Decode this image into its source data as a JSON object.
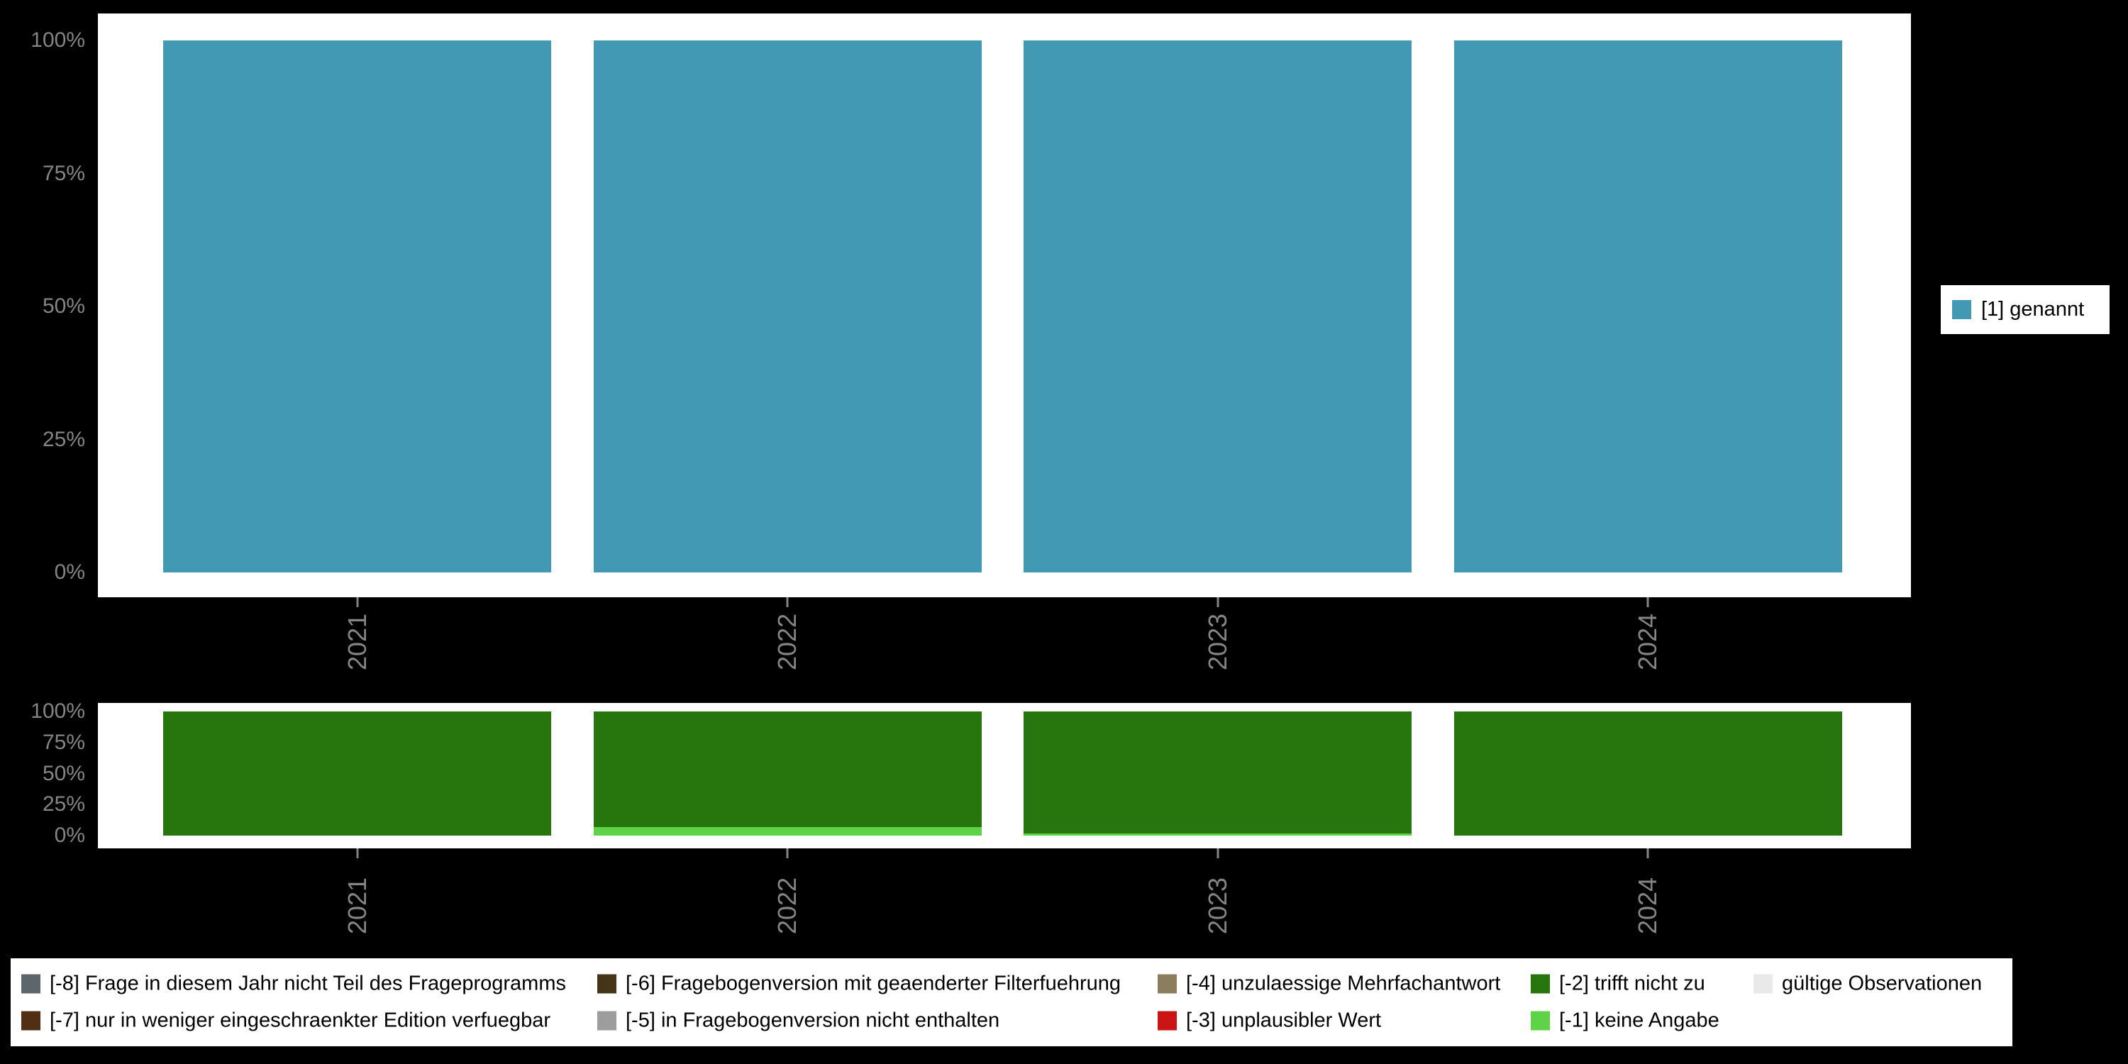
{
  "colors": {
    "background": "#000000",
    "panel": "#ffffff",
    "axis_text": "#858585",
    "genannt": "#4199b3",
    "trifft_nicht_zu": "#26760d",
    "keine_angabe": "#5fd348"
  },
  "top_chart": {
    "y_ticks": [
      "100%",
      "75%",
      "50%",
      "25%",
      "0%"
    ],
    "x_labels": [
      "2021",
      "2022",
      "2023",
      "2024"
    ],
    "legend": {
      "label": "[1] genannt",
      "color": "#4199b3"
    }
  },
  "bottom_chart": {
    "y_ticks": [
      "100%",
      "75%",
      "50%",
      "25%",
      "0%"
    ],
    "x_labels": [
      "2021",
      "2022",
      "2023",
      "2024"
    ]
  },
  "legend_bottom": {
    "rows": [
      [
        {
          "code": "-8",
          "label": "[-8] Frage in diesem Jahr nicht Teil des Frageprogramms",
          "color": "#5c666b"
        },
        {
          "code": "-6",
          "label": "[-6] Fragebogenversion mit geaenderter Filterfuehrung",
          "color": "#453418"
        },
        {
          "code": "-4",
          "label": "[-4] unzulaessige Mehrfachantwort",
          "color": "#8b7d5e"
        },
        {
          "code": "-2",
          "label": "[-2] trifft nicht zu",
          "color": "#26760d"
        },
        {
          "code": "valid",
          "label": "gültige Observationen",
          "color": "#e9e9e9"
        }
      ],
      [
        {
          "code": "-7",
          "label": "[-7] nur in weniger eingeschraenkter Edition verfuegbar",
          "color": "#502f15"
        },
        {
          "code": "-5",
          "label": "[-5] in Fragebogenversion nicht enthalten",
          "color": "#9d9d9d"
        },
        {
          "code": "-3",
          "label": "[-3] unplausibler Wert",
          "color": "#cb1414"
        },
        {
          "code": "-1",
          "label": "[-1] keine Angabe",
          "color": "#5fd348"
        }
      ]
    ]
  },
  "chart_data": [
    {
      "type": "bar",
      "title": "",
      "categories": [
        "2021",
        "2022",
        "2023",
        "2024"
      ],
      "series": [
        {
          "name": "[1] genannt",
          "color": "#4199b3",
          "values": [
            100,
            100,
            100,
            100
          ]
        }
      ],
      "xlabel": "",
      "ylabel": "",
      "ylim": [
        0,
        100
      ],
      "y_tick_labels": [
        "0%",
        "25%",
        "50%",
        "75%",
        "100%"
      ],
      "unit": "percent",
      "grid": false,
      "legend_position": "right"
    },
    {
      "type": "bar",
      "stacked": true,
      "title": "",
      "categories": [
        "2021",
        "2022",
        "2023",
        "2024"
      ],
      "series": [
        {
          "name": "[-1] keine Angabe",
          "color": "#5fd348",
          "values": [
            0,
            7,
            2,
            0
          ]
        },
        {
          "name": "[-2] trifft nicht zu",
          "color": "#26760d",
          "values": [
            100,
            93,
            98,
            100
          ]
        }
      ],
      "xlabel": "",
      "ylabel": "",
      "ylim": [
        0,
        100
      ],
      "y_tick_labels": [
        "0%",
        "25%",
        "50%",
        "75%",
        "100%"
      ],
      "unit": "percent",
      "grid": false,
      "legend_position": "bottom"
    }
  ]
}
